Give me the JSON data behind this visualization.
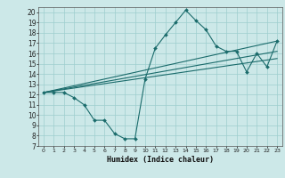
{
  "title": "",
  "xlabel": "Humidex (Indice chaleur)",
  "bg_color": "#cce8e8",
  "line_color": "#1a6b6b",
  "xlim": [
    -0.5,
    23.5
  ],
  "ylim": [
    7,
    20.5
  ],
  "xticks": [
    0,
    1,
    2,
    3,
    4,
    5,
    6,
    7,
    8,
    9,
    10,
    11,
    12,
    13,
    14,
    15,
    16,
    17,
    18,
    19,
    20,
    21,
    22,
    23
  ],
  "yticks": [
    7,
    8,
    9,
    10,
    11,
    12,
    13,
    14,
    15,
    16,
    17,
    18,
    19,
    20
  ],
  "main_series_x": [
    0,
    1,
    2,
    3,
    4,
    5,
    6,
    7,
    8,
    9,
    10,
    11,
    12,
    13,
    14,
    15,
    16,
    17,
    18,
    19,
    20,
    21,
    22,
    23
  ],
  "main_series_y": [
    12.2,
    12.2,
    12.2,
    11.7,
    11.0,
    9.5,
    9.5,
    8.2,
    7.7,
    7.7,
    13.5,
    16.5,
    17.8,
    19.0,
    20.2,
    19.2,
    18.3,
    16.7,
    16.2,
    16.2,
    14.2,
    16.0,
    14.7,
    17.2
  ],
  "line1_x": [
    0,
    23
  ],
  "line1_y": [
    12.2,
    17.2
  ],
  "line2_x": [
    0,
    23
  ],
  "line2_y": [
    12.2,
    16.2
  ],
  "line3_x": [
    0,
    23
  ],
  "line3_y": [
    12.2,
    15.5
  ]
}
